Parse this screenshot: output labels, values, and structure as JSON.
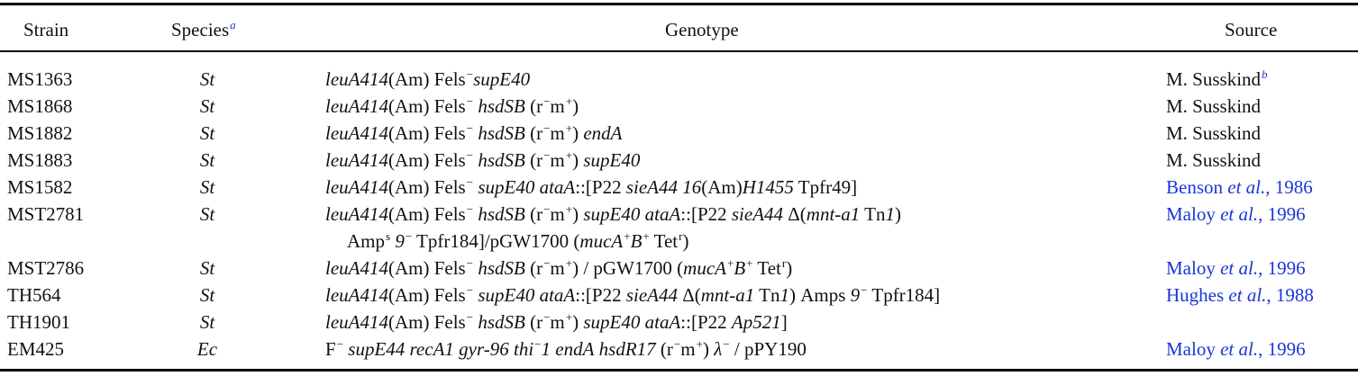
{
  "header": {
    "strain": "Strain",
    "species": "Species",
    "species_note": "a",
    "genotype": "Genotype",
    "source": "Source"
  },
  "colors": {
    "link": "#1a35d8",
    "rule": "#000000"
  },
  "rows": [
    {
      "strain": "MS1363",
      "species": "St",
      "source": "M. Susskind",
      "source_note": "b"
    },
    {
      "strain": "MS1868",
      "species": "St",
      "source": "M. Susskind"
    },
    {
      "strain": "MS1882",
      "species": "St",
      "source": "M. Susskind"
    },
    {
      "strain": "MS1883",
      "species": "St",
      "source": "M. Susskind"
    },
    {
      "strain": "MS1582",
      "species": "St",
      "source_a": "Benson ",
      "source_b": "et al.",
      "source_c": ", 1986"
    },
    {
      "strain": "MST2781",
      "species": "St",
      "source_a": "Maloy ",
      "source_b": "et al.",
      "source_c": ", 1996"
    },
    {
      "strain": "MST2786",
      "species": "St",
      "source_a": "Maloy ",
      "source_b": "et al.",
      "source_c": ", 1996"
    },
    {
      "strain": "TH564",
      "species": "St",
      "source_a": "Hughes ",
      "source_b": "et al.",
      "source_c": ", 1988"
    },
    {
      "strain": "TH1901",
      "species": "St"
    },
    {
      "strain": "EM425",
      "species": "Ec",
      "source_a": "Maloy ",
      "source_b": "et al.",
      "source_c": ", 1996"
    }
  ],
  "g": {
    "leuA414": "leuA414",
    "am": "(Am) Fels",
    "minus": "−",
    "plus": "+",
    "supE40": "supE40",
    "hsdSB": "hsdSB",
    "r": "r",
    "m": "m",
    "endA": "endA",
    "ataA": "ataA",
    "bracket_p22": "::[P22 ",
    "sieA44": "sieA44",
    "n16": "16",
    "am_only": "(Am)",
    "H1455": "H1455",
    "tpfr49": " Tpfr49]",
    "delta": "Δ",
    "mnt": "mnt-a1",
    "tn": " Tn",
    "one": "1",
    "close_paren": ")",
    "amp": "Amp",
    "s": "s",
    "nine": "9",
    "tpfr184": " Tpfr184]/pGW1700 (",
    "mucA": "mucA",
    "B": "B",
    "tet": " Tet",
    "r_super": "r",
    "slash_pgw": ") / pGW1700 (",
    "amps_text": " Amps ",
    "tpfr184_end": " Tpfr184]",
    "ap521": "Ap521",
    "close_bracket": "]",
    "F": "F",
    "supE44": "supE44",
    "recA1": "recA1",
    "gyr96": "gyr-96",
    "thi": "thi",
    "one_after": "1",
    "hsdR17": "hsdR17",
    "lambda": "λ",
    "pPY190": " / pPY190"
  }
}
